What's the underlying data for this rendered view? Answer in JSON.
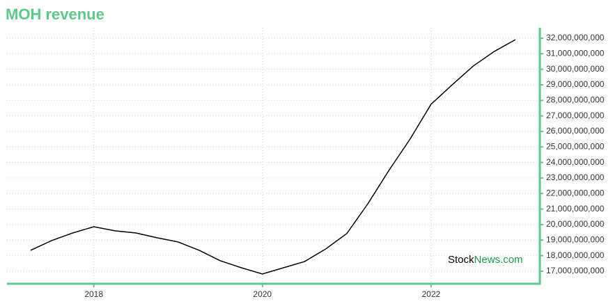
{
  "chart_data": {
    "type": "line",
    "title": "MOH revenue",
    "watermark": [
      "Stock",
      "News.com"
    ],
    "x": [
      2017.25,
      2017.5,
      2017.75,
      2018,
      2018.25,
      2018.5,
      2018.75,
      2019,
      2019.25,
      2019.5,
      2019.75,
      2020,
      2020.25,
      2020.5,
      2020.75,
      2021,
      2021.25,
      2021.5,
      2021.75,
      2022,
      2022.25,
      2022.5,
      2022.75,
      2023
    ],
    "series": [
      {
        "name": "revenue",
        "color": "#000000",
        "values": [
          18340000000,
          18970000000,
          19460000000,
          19860000000,
          19600000000,
          19460000000,
          19150000000,
          18880000000,
          18340000000,
          17670000000,
          17220000000,
          16820000000,
          17220000000,
          17620000000,
          18430000000,
          19420000000,
          21340000000,
          23490000000,
          25500000000,
          27750000000,
          29000000000,
          30210000000,
          31150000000,
          31910000000
        ]
      }
    ],
    "xlim": [
      2016.97,
      2023.29
    ],
    "xticks": [
      2018,
      2020,
      2022
    ],
    "ylim": [
      16190000000,
      32670000000
    ],
    "yticks": [
      {
        "value": 17000000000,
        "label": "17,000,000,000"
      },
      {
        "value": 18000000000,
        "label": "18,000,000,000"
      },
      {
        "value": 19000000000,
        "label": "19,000,000,000"
      },
      {
        "value": 20000000000,
        "label": "20,000,000,000"
      },
      {
        "value": 21000000000,
        "label": "21,000,000,000"
      },
      {
        "value": 22000000000,
        "label": "22,000,000,000"
      },
      {
        "value": 23000000000,
        "label": "23,000,000,000"
      },
      {
        "value": 24000000000,
        "label": "24,000,000,000"
      },
      {
        "value": 25000000000,
        "label": "25,000,000,000"
      },
      {
        "value": 26000000000,
        "label": "26,000,000,000"
      },
      {
        "value": 27000000000,
        "label": "27,000,000,000"
      },
      {
        "value": 28000000000,
        "label": "28,000,000,000"
      },
      {
        "value": 29000000000,
        "label": "29,000,000,000"
      },
      {
        "value": 30000000000,
        "label": "30,000,000,000"
      },
      {
        "value": 31000000000,
        "label": "31,000,000,000"
      },
      {
        "value": 32000000000,
        "label": "32,000,000,000"
      }
    ],
    "grid": true,
    "axis_color": "#5cc98a"
  }
}
